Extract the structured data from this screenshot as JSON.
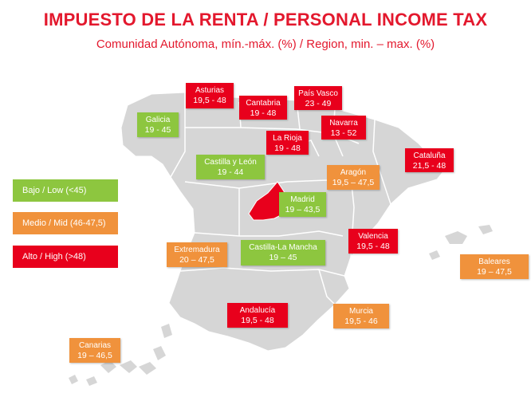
{
  "header": {
    "title": "IMPUESTO DE LA RENTA / PERSONAL INCOME TAX",
    "subtitle": "Comunidad Autónoma, mín.-máx. (%) / Region, min. – max. (%)"
  },
  "colors": {
    "low": "#8dc63f",
    "mid": "#f0923c",
    "high": "#e8001c",
    "map_fill": "#d6d6d6",
    "map_border": "#ffffff",
    "madrid_fill": "#e8001c",
    "title": "#e3182d"
  },
  "legend": [
    {
      "label": "Bajo / Low  (<45)",
      "level": "low"
    },
    {
      "label": "Medio / Mid (46-47,5)",
      "level": "mid"
    },
    {
      "label": "Alto / High (>48)",
      "level": "high"
    }
  ],
  "regions": [
    {
      "name": "Asturias",
      "value": "19,5 - 48",
      "level": "high"
    },
    {
      "name": "Cantabria",
      "value": "19 - 48",
      "level": "high"
    },
    {
      "name": "País Vasco",
      "value": "23 - 49",
      "level": "high"
    },
    {
      "name": "Galicia",
      "value": "19 - 45",
      "level": "low"
    },
    {
      "name": "Navarra",
      "value": "13 - 52",
      "level": "high"
    },
    {
      "name": "La Rioja",
      "value": "19 - 48",
      "level": "high"
    },
    {
      "name": "Cataluña",
      "value": "21,5 - 48",
      "level": "high"
    },
    {
      "name": "Castilla y León",
      "value": "19 - 44",
      "level": "low"
    },
    {
      "name": "Aragón",
      "value": "19,5 – 47,5",
      "level": "mid"
    },
    {
      "name": "Madrid",
      "value": "19 – 43,5",
      "level": "low"
    },
    {
      "name": "Extremadura",
      "value": "20 – 47,5",
      "level": "mid"
    },
    {
      "name": "Castilla-La Mancha",
      "value": "19 – 45",
      "level": "low"
    },
    {
      "name": "Valencia",
      "value": "19,5 - 48",
      "level": "high"
    },
    {
      "name": "Baleares",
      "value": "19 – 47,5",
      "level": "mid"
    },
    {
      "name": "Andalucía",
      "value": "19,5 - 48",
      "level": "high"
    },
    {
      "name": "Murcia",
      "value": "19,5 - 46",
      "level": "mid"
    },
    {
      "name": "Canarias",
      "value": "19 – 46,5",
      "level": "mid"
    }
  ]
}
